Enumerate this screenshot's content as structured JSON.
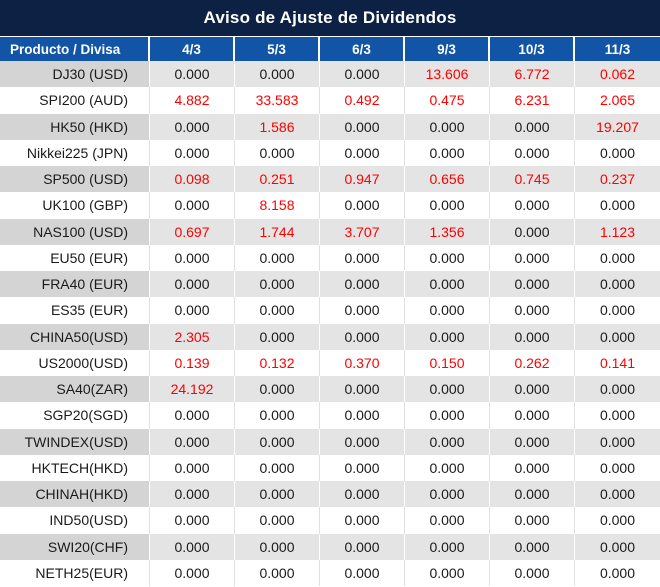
{
  "title": "Aviso de Ajuste de Dividendos",
  "colors": {
    "title_bg": "#0d2145",
    "header_bg": "#1254a6",
    "header_text": "#ffffff",
    "row_gray_name": "#d4d4d4",
    "row_gray_value": "#e4e4e4",
    "row_white": "#ffffff",
    "value_zero": "#1a1a1a",
    "value_nonzero": "#ff0000"
  },
  "table": {
    "header": {
      "product_col": "Producto / Divisa",
      "dates": [
        "4/3",
        "5/3",
        "6/3",
        "9/3",
        "10/3",
        "11/3"
      ]
    },
    "rows": [
      {
        "product": "DJ30 (USD)",
        "values": [
          "0.000",
          "0.000",
          "0.000",
          "13.606",
          "6.772",
          "0.062"
        ]
      },
      {
        "product": "SPI200 (AUD)",
        "values": [
          "4.882",
          "33.583",
          "0.492",
          "0.475",
          "6.231",
          "2.065"
        ]
      },
      {
        "product": "HK50 (HKD)",
        "values": [
          "0.000",
          "1.586",
          "0.000",
          "0.000",
          "0.000",
          "19.207"
        ]
      },
      {
        "product": "Nikkei225 (JPN)",
        "values": [
          "0.000",
          "0.000",
          "0.000",
          "0.000",
          "0.000",
          "0.000"
        ]
      },
      {
        "product": "SP500 (USD)",
        "values": [
          "0.098",
          "0.251",
          "0.947",
          "0.656",
          "0.745",
          "0.237"
        ]
      },
      {
        "product": "UK100 (GBP)",
        "values": [
          "0.000",
          "8.158",
          "0.000",
          "0.000",
          "0.000",
          "0.000"
        ]
      },
      {
        "product": "NAS100 (USD)",
        "values": [
          "0.697",
          "1.744",
          "3.707",
          "1.356",
          "0.000",
          "1.123"
        ]
      },
      {
        "product": "EU50 (EUR)",
        "values": [
          "0.000",
          "0.000",
          "0.000",
          "0.000",
          "0.000",
          "0.000"
        ]
      },
      {
        "product": "FRA40 (EUR)",
        "values": [
          "0.000",
          "0.000",
          "0.000",
          "0.000",
          "0.000",
          "0.000"
        ]
      },
      {
        "product": "ES35 (EUR)",
        "values": [
          "0.000",
          "0.000",
          "0.000",
          "0.000",
          "0.000",
          "0.000"
        ]
      },
      {
        "product": "CHINA50(USD)",
        "values": [
          "2.305",
          "0.000",
          "0.000",
          "0.000",
          "0.000",
          "0.000"
        ]
      },
      {
        "product": "US2000(USD)",
        "values": [
          "0.139",
          "0.132",
          "0.370",
          "0.150",
          "0.262",
          "0.141"
        ]
      },
      {
        "product": "SA40(ZAR)",
        "values": [
          "24.192",
          "0.000",
          "0.000",
          "0.000",
          "0.000",
          "0.000"
        ]
      },
      {
        "product": "SGP20(SGD)",
        "values": [
          "0.000",
          "0.000",
          "0.000",
          "0.000",
          "0.000",
          "0.000"
        ]
      },
      {
        "product": "TWINDEX(USD)",
        "values": [
          "0.000",
          "0.000",
          "0.000",
          "0.000",
          "0.000",
          "0.000"
        ]
      },
      {
        "product": "HKTECH(HKD)",
        "values": [
          "0.000",
          "0.000",
          "0.000",
          "0.000",
          "0.000",
          "0.000"
        ]
      },
      {
        "product": "CHINAH(HKD)",
        "values": [
          "0.000",
          "0.000",
          "0.000",
          "0.000",
          "0.000",
          "0.000"
        ]
      },
      {
        "product": "IND50(USD)",
        "values": [
          "0.000",
          "0.000",
          "0.000",
          "0.000",
          "0.000",
          "0.000"
        ]
      },
      {
        "product": "SWI20(CHF)",
        "values": [
          "0.000",
          "0.000",
          "0.000",
          "0.000",
          "0.000",
          "0.000"
        ]
      },
      {
        "product": "NETH25(EUR)",
        "values": [
          "0.000",
          "0.000",
          "0.000",
          "0.000",
          "0.000",
          "0.000"
        ]
      }
    ]
  }
}
